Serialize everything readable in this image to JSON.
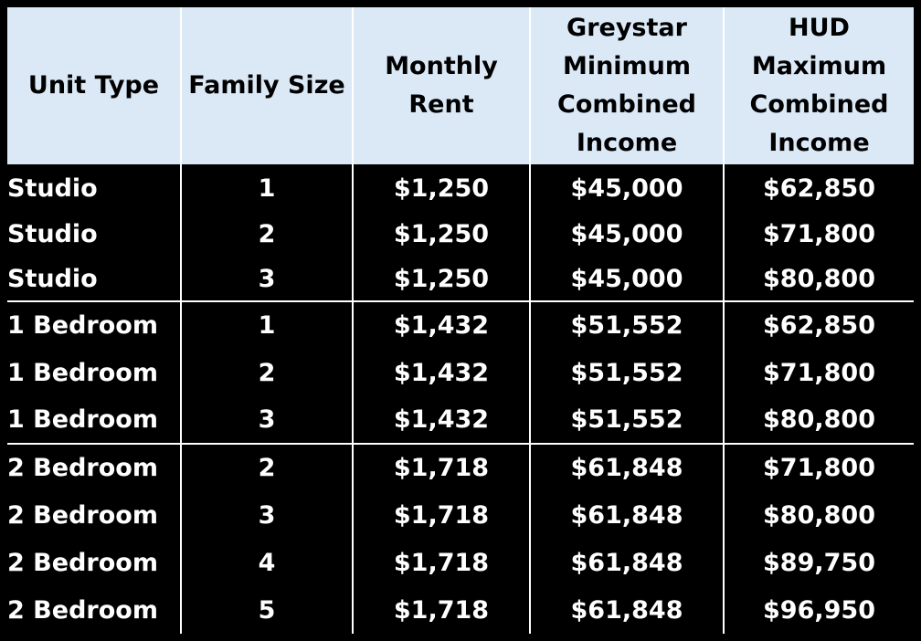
{
  "table": {
    "headers": [
      "Unit Type",
      "Family Size",
      "Monthly Rent",
      "Greystar Minimum Combined Income",
      "HUD Maximum Combined Income"
    ],
    "rows": [
      {
        "unit_type": "Studio",
        "family_size": "1",
        "monthly_rent": "$1,250",
        "greystar_min_income": "$45,000",
        "hud_max_income": "$62,850"
      },
      {
        "unit_type": "Studio",
        "family_size": "2",
        "monthly_rent": "$1,250",
        "greystar_min_income": "$45,000",
        "hud_max_income": "$71,800"
      },
      {
        "unit_type": "Studio",
        "family_size": "3",
        "monthly_rent": "$1,250",
        "greystar_min_income": "$45,000",
        "hud_max_income": "$80,800"
      },
      {
        "unit_type": "1 Bedroom",
        "family_size": "1",
        "monthly_rent": "$1,432",
        "greystar_min_income": "$51,552",
        "hud_max_income": "$62,850"
      },
      {
        "unit_type": "1 Bedroom",
        "family_size": "2",
        "monthly_rent": "$1,432",
        "greystar_min_income": "$51,552",
        "hud_max_income": "$71,800"
      },
      {
        "unit_type": "1 Bedroom",
        "family_size": "3",
        "monthly_rent": "$1,432",
        "greystar_min_income": "$51,552",
        "hud_max_income": "$80,800"
      },
      {
        "unit_type": "2 Bedroom",
        "family_size": "2",
        "monthly_rent": "$1,718",
        "greystar_min_income": "$61,848",
        "hud_max_income": "$71,800"
      },
      {
        "unit_type": "2 Bedroom",
        "family_size": "3",
        "monthly_rent": "$1,718",
        "greystar_min_income": "$61,848",
        "hud_max_income": "$80,800"
      },
      {
        "unit_type": "2 Bedroom",
        "family_size": "4",
        "monthly_rent": "$1,718",
        "greystar_min_income": "$61,848",
        "hud_max_income": "$89,750"
      },
      {
        "unit_type": "2 Bedroom",
        "family_size": "5",
        "monthly_rent": "$1,718",
        "greystar_min_income": "$61,848",
        "hud_max_income": "$96,950"
      }
    ]
  }
}
